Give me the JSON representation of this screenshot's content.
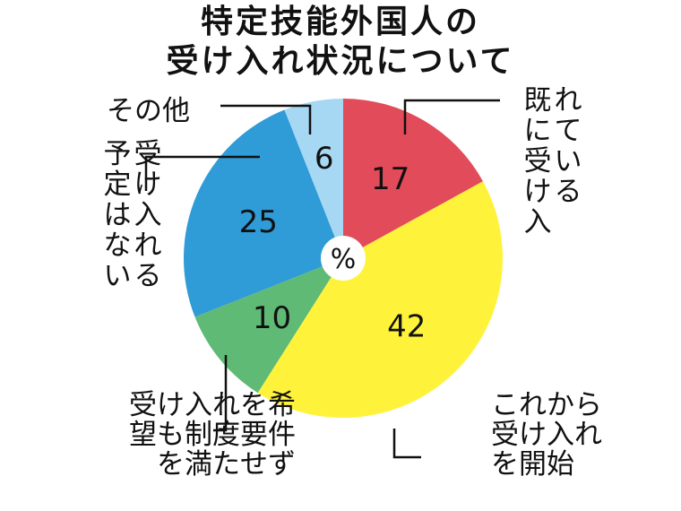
{
  "chart_data": {
    "type": "pie",
    "title_lines": [
      "特定技能外国人の",
      "受け入れ状況について"
    ],
    "unit": "%",
    "slices": [
      {
        "label": "既に受け入れている",
        "label_lines": [
          "既に受け入",
          "れている"
        ],
        "value": 17,
        "color": "#e24b59"
      },
      {
        "label": "これから受け入れを開始",
        "label_lines": [
          "これから",
          "受け入れ",
          "を開始"
        ],
        "value": 42,
        "color": "#fff23a"
      },
      {
        "label": "受け入れを希望も制度要件を満たせず",
        "label_lines": [
          "受け入れを希",
          "望も制度要件",
          "を満たせず"
        ],
        "value": 10,
        "color": "#5fba76"
      },
      {
        "label": "受け入れる予定はない",
        "label_lines": [
          "受け入れる",
          "予定はない"
        ],
        "value": 25,
        "color": "#2f9bd7"
      },
      {
        "label": "その他",
        "label_lines": [
          "その他"
        ],
        "value": 6,
        "color": "#a6d8f4"
      }
    ]
  }
}
